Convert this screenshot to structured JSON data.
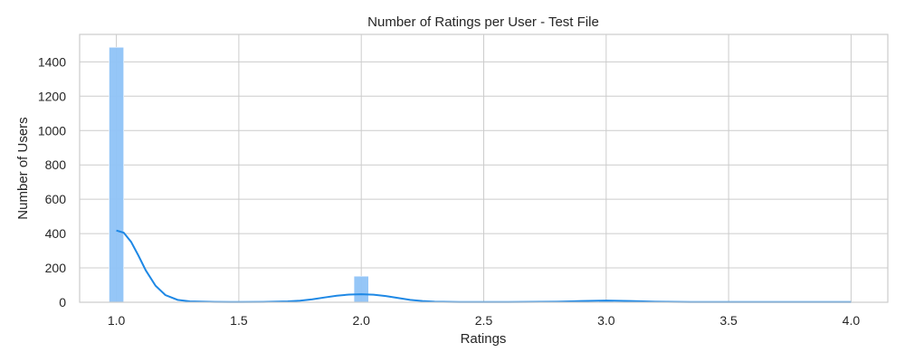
{
  "chart_data": {
    "type": "bar",
    "title": "Number of Ratings per User - Test File",
    "xlabel": "Ratings",
    "ylabel": "Number of Users",
    "xlim": [
      0.85,
      4.15
    ],
    "ylim": [
      0,
      1560
    ],
    "xticks": [
      "1.0",
      "1.5",
      "2.0",
      "2.5",
      "3.0",
      "3.5",
      "4.0"
    ],
    "yticks": [
      "0",
      "200",
      "400",
      "600",
      "800",
      "1000",
      "1200",
      "1400"
    ],
    "grid": true,
    "colors": {
      "bar": "#8fc3f7",
      "kde": "#1e88e5"
    },
    "bins": [
      {
        "x": 1.0,
        "count": 1485
      },
      {
        "x": 2.0,
        "count": 152
      },
      {
        "x": 3.0,
        "count": 12
      },
      {
        "x": 4.0,
        "count": 2
      }
    ],
    "kde": {
      "x": [
        1.0,
        1.03,
        1.06,
        1.09,
        1.12,
        1.16,
        1.2,
        1.25,
        1.3,
        1.4,
        1.5,
        1.6,
        1.7,
        1.75,
        1.8,
        1.85,
        1.9,
        1.95,
        2.0,
        2.05,
        2.1,
        2.15,
        2.2,
        2.25,
        2.3,
        2.4,
        2.6,
        2.8,
        2.9,
        3.0,
        3.1,
        3.2,
        3.4,
        3.6,
        3.8,
        4.0
      ],
      "y": [
        418,
        405,
        352,
        272,
        186,
        96,
        42,
        14,
        5,
        2,
        1,
        2,
        5,
        9,
        17,
        28,
        38,
        45,
        47,
        44,
        36,
        25,
        14,
        7,
        3,
        1,
        1,
        3,
        7,
        10,
        7,
        3,
        1,
        1,
        1,
        1
      ]
    }
  }
}
